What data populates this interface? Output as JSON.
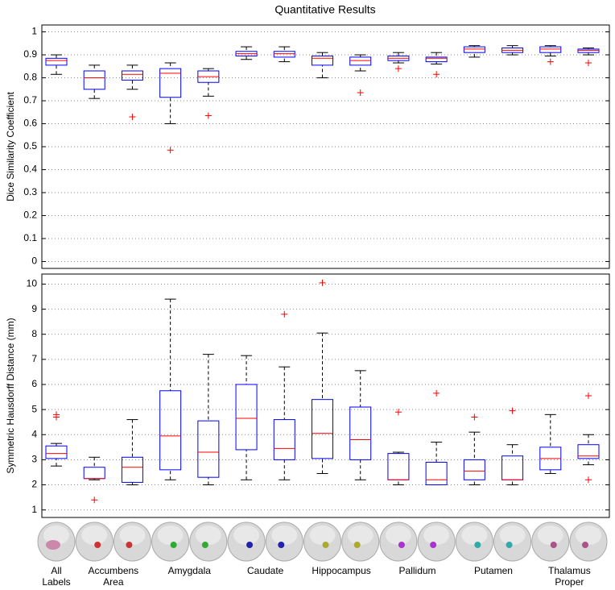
{
  "title": "Quantitative Results",
  "x_labels": [
    "All Labels",
    "Accumbens Area",
    "Amygdala",
    "Caudate",
    "Hippocampus",
    "Pallidum",
    "Putamen",
    "Thalamus Proper"
  ],
  "chart_data": [
    {
      "type": "box",
      "ylabel": "Dice Similarity Coefficient",
      "ylim": [
        -0.03,
        1.03
      ],
      "yticks": [
        0,
        0.1,
        0.2,
        0.3,
        0.4,
        0.5,
        0.6,
        0.7,
        0.8,
        0.9,
        1
      ],
      "grid": true,
      "box_color": "#0000ff",
      "median_color": "#ff0000",
      "outlier_color": "#ff0000",
      "boxes": [
        {
          "min": 0.815,
          "q1": 0.855,
          "median": 0.875,
          "q3": 0.885,
          "max": 0.9,
          "outliers": []
        },
        {
          "min": 0.71,
          "q1": 0.75,
          "median": 0.8,
          "q3": 0.83,
          "max": 0.855,
          "outliers": []
        },
        {
          "min": 0.75,
          "q1": 0.79,
          "median": 0.815,
          "q3": 0.83,
          "max": 0.855,
          "outliers": [
            0.63
          ]
        },
        {
          "min": 0.6,
          "q1": 0.715,
          "median": 0.82,
          "q3": 0.84,
          "max": 0.865,
          "outliers": [
            0.485
          ]
        },
        {
          "min": 0.72,
          "q1": 0.78,
          "median": 0.805,
          "q3": 0.83,
          "max": 0.84,
          "outliers": [
            0.635
          ]
        },
        {
          "min": 0.88,
          "q1": 0.895,
          "median": 0.905,
          "q3": 0.915,
          "max": 0.935,
          "outliers": []
        },
        {
          "min": 0.87,
          "q1": 0.89,
          "median": 0.905,
          "q3": 0.915,
          "max": 0.935,
          "outliers": []
        },
        {
          "min": 0.8,
          "q1": 0.855,
          "median": 0.885,
          "q3": 0.895,
          "max": 0.91,
          "outliers": []
        },
        {
          "min": 0.83,
          "q1": 0.855,
          "median": 0.875,
          "q3": 0.89,
          "max": 0.9,
          "outliers": [
            0.735
          ]
        },
        {
          "min": 0.865,
          "q1": 0.875,
          "median": 0.885,
          "q3": 0.895,
          "max": 0.91,
          "outliers": [
            0.84
          ]
        },
        {
          "min": 0.86,
          "q1": 0.87,
          "median": 0.885,
          "q3": 0.89,
          "max": 0.91,
          "outliers": [
            0.815
          ]
        },
        {
          "min": 0.89,
          "q1": 0.91,
          "median": 0.925,
          "q3": 0.935,
          "max": 0.94,
          "outliers": []
        },
        {
          "min": 0.9,
          "q1": 0.91,
          "median": 0.92,
          "q3": 0.93,
          "max": 0.94,
          "outliers": []
        },
        {
          "min": 0.895,
          "q1": 0.91,
          "median": 0.925,
          "q3": 0.935,
          "max": 0.94,
          "outliers": [
            0.87
          ]
        },
        {
          "min": 0.9,
          "q1": 0.91,
          "median": 0.92,
          "q3": 0.925,
          "max": 0.93,
          "outliers": [
            0.865
          ]
        }
      ]
    },
    {
      "type": "box",
      "ylabel": "Symmetric Hausdorff Distance (mm)",
      "ylim": [
        0.7,
        10.4
      ],
      "yticks": [
        1,
        2,
        3,
        4,
        5,
        6,
        7,
        8,
        9,
        10
      ],
      "grid": true,
      "box_color": "#0000ff",
      "median_color": "#ff0000",
      "outlier_color": "#ff0000",
      "boxes": [
        {
          "min": 2.75,
          "q1": 3.05,
          "median": 3.25,
          "q3": 3.55,
          "max": 3.65,
          "outliers": [
            4.8,
            4.7
          ]
        },
        {
          "min": 2.2,
          "q1": 2.25,
          "median": 2.25,
          "q3": 2.7,
          "max": 3.1,
          "outliers": [
            1.4
          ]
        },
        {
          "min": 2.0,
          "q1": 2.1,
          "median": 2.7,
          "q3": 3.1,
          "max": 4.6,
          "outliers": []
        },
        {
          "min": 2.2,
          "q1": 2.6,
          "median": 3.95,
          "q3": 5.75,
          "max": 9.4,
          "outliers": []
        },
        {
          "min": 2.0,
          "q1": 2.3,
          "median": 3.3,
          "q3": 4.55,
          "max": 7.2,
          "outliers": []
        },
        {
          "min": 2.2,
          "q1": 3.4,
          "median": 4.65,
          "q3": 6.0,
          "max": 7.15,
          "outliers": []
        },
        {
          "min": 2.2,
          "q1": 3.0,
          "median": 3.45,
          "q3": 4.6,
          "max": 6.7,
          "outliers": [
            8.8
          ]
        },
        {
          "min": 2.45,
          "q1": 3.05,
          "median": 4.05,
          "q3": 5.4,
          "max": 8.05,
          "outliers": [
            10.05
          ]
        },
        {
          "min": 2.2,
          "q1": 3.0,
          "median": 3.8,
          "q3": 5.1,
          "max": 6.55,
          "outliers": []
        },
        {
          "min": 2.0,
          "q1": 2.2,
          "median": 2.2,
          "q3": 3.25,
          "max": 3.3,
          "outliers": [
            4.9
          ]
        },
        {
          "min": 2.0,
          "q1": 2.0,
          "median": 2.2,
          "q3": 2.9,
          "max": 3.7,
          "outliers": [
            5.65
          ]
        },
        {
          "min": 2.0,
          "q1": 2.2,
          "median": 2.55,
          "q3": 3.0,
          "max": 4.1,
          "outliers": [
            4.7
          ]
        },
        {
          "min": 2.0,
          "q1": 2.2,
          "median": 2.2,
          "q3": 3.15,
          "max": 3.6,
          "outliers": [
            4.95
          ]
        },
        {
          "min": 2.45,
          "q1": 2.6,
          "median": 3.05,
          "q3": 3.5,
          "max": 4.8,
          "outliers": []
        },
        {
          "min": 2.8,
          "q1": 3.05,
          "median": 3.15,
          "q3": 3.6,
          "max": 4.0,
          "outliers": [
            5.55,
            2.2
          ]
        }
      ]
    }
  ]
}
